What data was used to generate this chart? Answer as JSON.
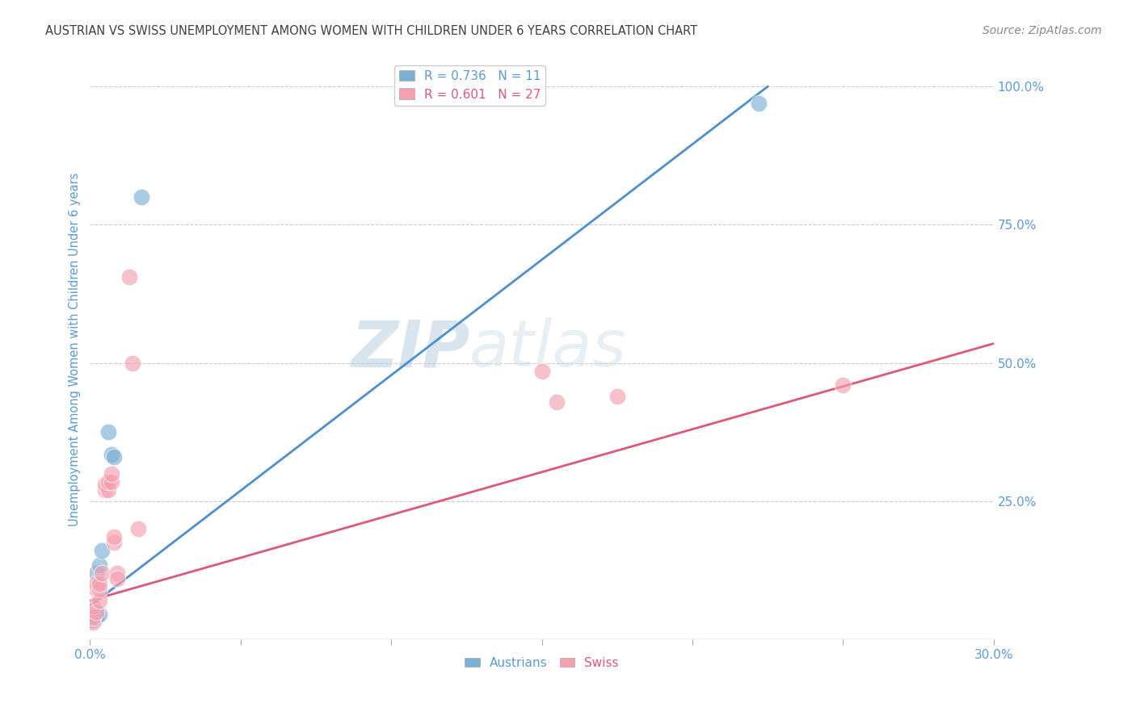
{
  "title": "AUSTRIAN VS SWISS UNEMPLOYMENT AMONG WOMEN WITH CHILDREN UNDER 6 YEARS CORRELATION CHART",
  "source": "Source: ZipAtlas.com",
  "ylabel": "Unemployment Among Women with Children Under 6 years",
  "xlabel": "",
  "xlim": [
    0.0,
    0.3
  ],
  "ylim": [
    0.0,
    1.05
  ],
  "xticks": [
    0.0,
    0.05,
    0.1,
    0.15,
    0.2,
    0.25,
    0.3
  ],
  "xtick_labels": [
    "0.0%",
    "",
    "",
    "",
    "",
    "",
    "30.0%"
  ],
  "yticks_right": [
    0.25,
    0.5,
    0.75,
    1.0
  ],
  "ytick_labels_right": [
    "25.0%",
    "50.0%",
    "75.0%",
    "100.0%"
  ],
  "austrians_x": [
    0.001,
    0.002,
    0.002,
    0.003,
    0.003,
    0.004,
    0.006,
    0.007,
    0.008,
    0.017,
    0.222
  ],
  "austrians_y": [
    0.035,
    0.04,
    0.12,
    0.045,
    0.135,
    0.16,
    0.375,
    0.335,
    0.33,
    0.8,
    0.97
  ],
  "swiss_x": [
    0.001,
    0.001,
    0.001,
    0.002,
    0.002,
    0.002,
    0.003,
    0.003,
    0.003,
    0.004,
    0.005,
    0.005,
    0.006,
    0.006,
    0.007,
    0.007,
    0.008,
    0.008,
    0.009,
    0.009,
    0.013,
    0.014,
    0.016,
    0.15,
    0.155,
    0.175,
    0.25
  ],
  "swiss_y": [
    0.03,
    0.04,
    0.06,
    0.05,
    0.09,
    0.1,
    0.07,
    0.09,
    0.1,
    0.12,
    0.27,
    0.28,
    0.27,
    0.285,
    0.285,
    0.3,
    0.175,
    0.185,
    0.12,
    0.11,
    0.655,
    0.5,
    0.2,
    0.485,
    0.43,
    0.44,
    0.46
  ],
  "blue_line_x": [
    0.0,
    0.225
  ],
  "blue_line_y": [
    0.06,
    1.0
  ],
  "pink_line_x": [
    0.0,
    0.3
  ],
  "pink_line_y": [
    0.07,
    0.535
  ],
  "legend_R_austrians": "R = 0.736",
  "legend_N_austrians": "N = 11",
  "legend_R_swiss": "R = 0.601",
  "legend_N_swiss": "N = 27",
  "austrians_color": "#7bafd4",
  "swiss_color": "#f4a0b0",
  "blue_line_color": "#4d8fcc",
  "pink_line_color": "#e05878",
  "watermark_zip": "ZIP",
  "watermark_atlas": "atlas",
  "title_color": "#404040",
  "tick_label_color": "#5b9bd5",
  "source_color": "#888888",
  "grid_color": "#cccccc",
  "background_color": "#ffffff"
}
